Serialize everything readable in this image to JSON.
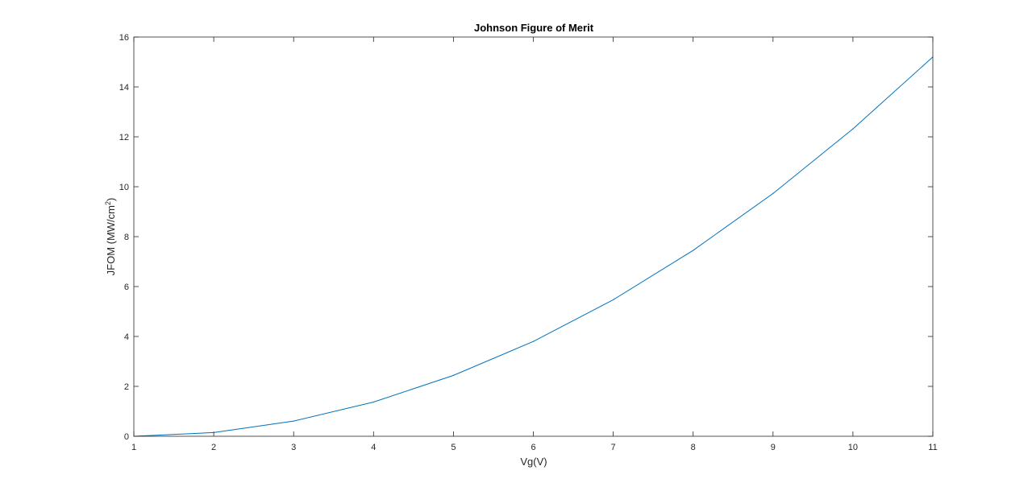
{
  "chart_data": {
    "type": "line",
    "title": "Johnson Figure of Merit",
    "xlabel": "Vg(V)",
    "ylabel_main": "JFOM (MW/cm",
    "ylabel_sup": "2",
    "ylabel_end": ")",
    "xlim": [
      1,
      11
    ],
    "ylim": [
      0,
      16
    ],
    "xticks": [
      1,
      2,
      3,
      4,
      5,
      6,
      7,
      8,
      9,
      10,
      11
    ],
    "yticks": [
      0,
      2,
      4,
      6,
      8,
      10,
      12,
      14,
      16
    ],
    "grid": false,
    "series": [
      {
        "color": "#0072BD",
        "x": [
          1,
          2,
          3,
          4,
          5,
          6,
          7,
          8,
          9,
          10,
          11
        ],
        "y": [
          0,
          0.15,
          0.61,
          1.37,
          2.44,
          3.8,
          5.47,
          7.45,
          9.73,
          12.32,
          15.2
        ]
      }
    ]
  }
}
